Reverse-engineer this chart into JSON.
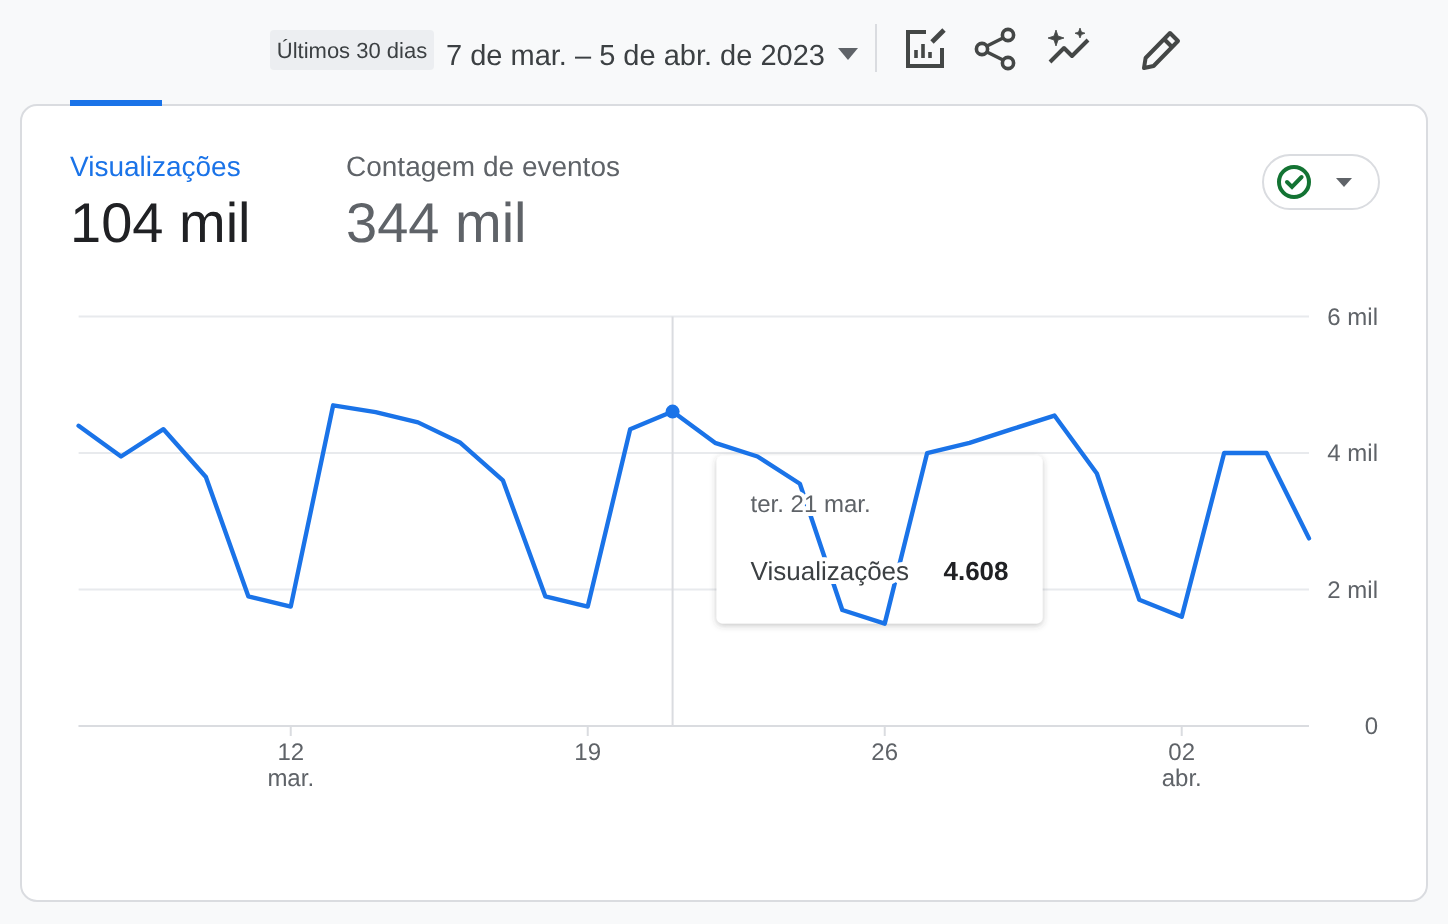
{
  "chart_data": {
    "type": "line",
    "title": "7 de mar. – 5 de abr. de 2023",
    "subtitle": "Últimos 30 dias",
    "x": [
      "2023-03-07",
      "2023-03-08",
      "2023-03-09",
      "2023-03-10",
      "2023-03-11",
      "2023-03-12",
      "2023-03-13",
      "2023-03-14",
      "2023-03-15",
      "2023-03-16",
      "2023-03-17",
      "2023-03-18",
      "2023-03-19",
      "2023-03-20",
      "2023-03-21",
      "2023-03-22",
      "2023-03-23",
      "2023-03-24",
      "2023-03-25",
      "2023-03-26",
      "2023-03-27",
      "2023-03-28",
      "2023-03-29",
      "2023-03-30",
      "2023-03-31",
      "2023-04-01",
      "2023-04-02",
      "2023-04-03",
      "2023-04-04",
      "2023-04-05"
    ],
    "series": [
      {
        "name": "Visualizações",
        "color": "#1a73e8",
        "values": [
          4.4,
          3.95,
          4.35,
          3.65,
          1.9,
          1.75,
          4.7,
          4.6,
          4.45,
          4.15,
          3.6,
          1.9,
          1.75,
          4.35,
          4.608,
          4.15,
          3.95,
          3.55,
          1.7,
          1.5,
          4.0,
          4.15,
          4.35,
          4.55,
          3.7,
          1.85,
          1.6,
          4.0,
          4.0,
          2.75
        ]
      }
    ],
    "xlim": [
      "2023-03-07",
      "2023-04-05"
    ],
    "xticks": [
      {
        "value": "2023-03-12",
        "label": "12\nmar."
      },
      {
        "value": "2023-03-19",
        "label": "19"
      },
      {
        "value": "2023-03-26",
        "label": "26"
      },
      {
        "value": "2023-04-02",
        "label": "02\nabr."
      }
    ],
    "ylim": [
      0,
      6
    ],
    "yticks": [
      0,
      {
        "value": 2,
        "label": "2 mil"
      },
      {
        "value": 4,
        "label": "4 mil"
      },
      {
        "value": 6,
        "label": "6 mil"
      }
    ],
    "grid": "y",
    "legend": "top left",
    "ref_lines": [
      {
        "axis": "x",
        "value": "2023-03-21",
        "color": "#dadce0"
      }
    ],
    "annotations": [
      "104 mil",
      "Contagem de eventos",
      "344 mil",
      "ter. 21 mar.",
      "Visualizações",
      "4.608"
    ]
  }
}
